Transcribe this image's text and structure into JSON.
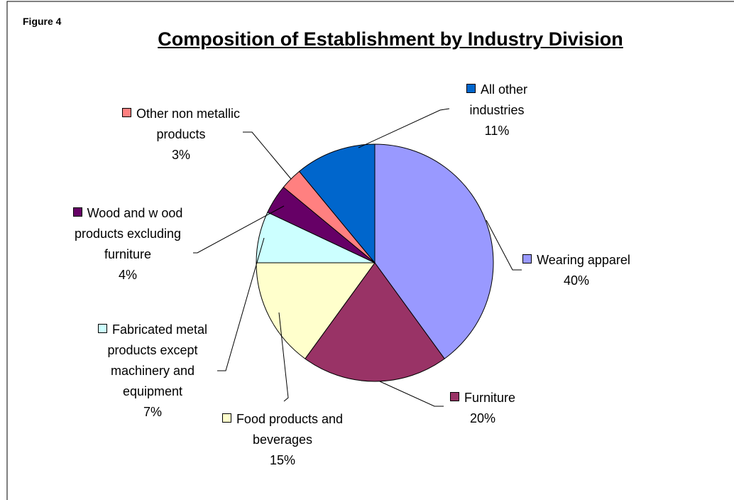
{
  "chart_data": {
    "type": "pie",
    "figure_label": "Figure 4",
    "title": "Composition of Establishment by Industry Division",
    "categories": [
      "Wearing apparel",
      "Furniture",
      "Food products and beverages",
      "Fabricated metal products except machinery and equipment",
      "Wood and w ood products excluding furniture",
      "Other non metallic products",
      "All other industries"
    ],
    "values": [
      40,
      20,
      15,
      7,
      4,
      3,
      11
    ],
    "value_labels": [
      "40%",
      "20%",
      "15%",
      "7%",
      "4%",
      "3%",
      "11%"
    ],
    "colors": [
      "#9999ff",
      "#993366",
      "#ffffcc",
      "#ccffff",
      "#660066",
      "#ff8080",
      "#0066cc"
    ]
  }
}
